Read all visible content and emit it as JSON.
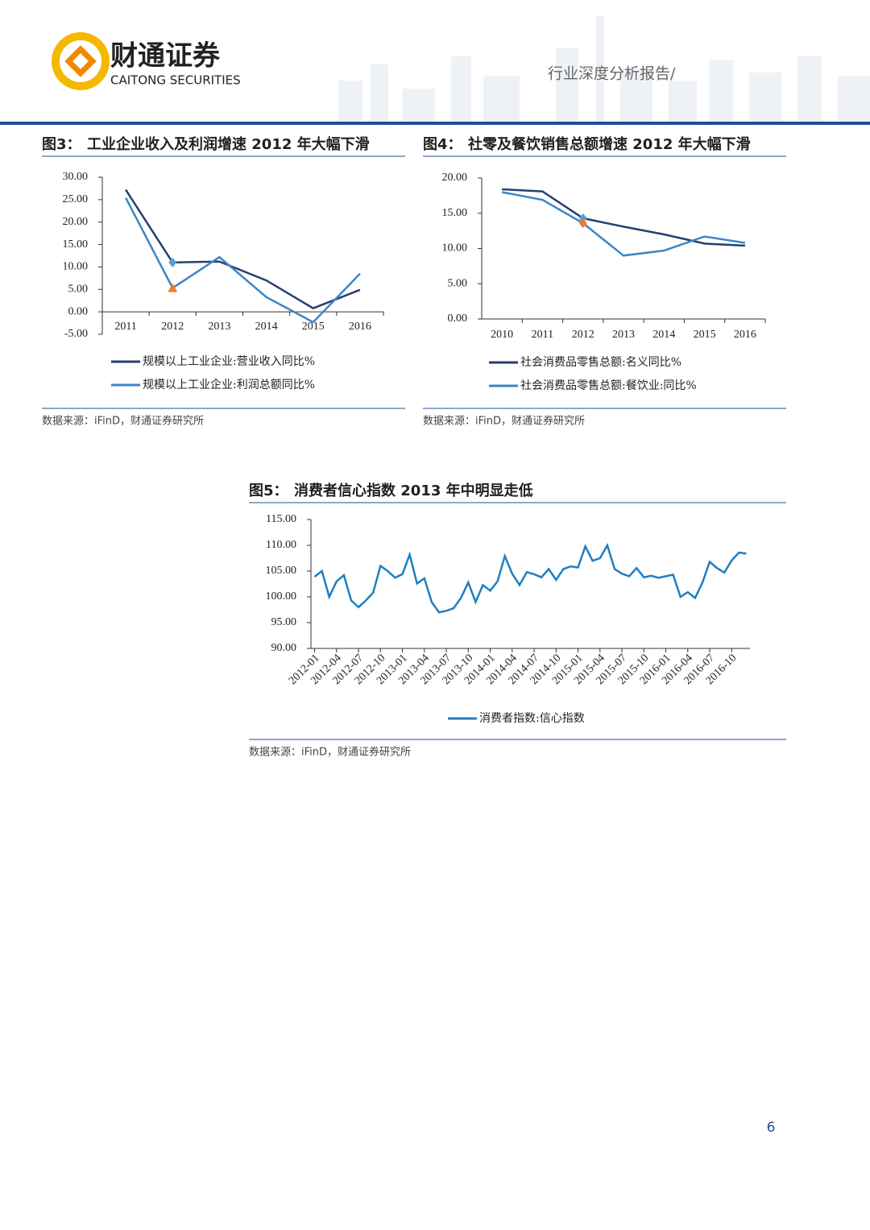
{
  "header": {
    "brand": "财通证券",
    "brand_en": "CAITONG SECURITIES",
    "report_type": "行业深度分析报告/"
  },
  "chart_data": [
    {
      "type": "line",
      "label": "图3：",
      "title": "工业企业收入及利润增速 2012 年大幅下滑",
      "categories": [
        "2011",
        "2012",
        "2013",
        "2014",
        "2015",
        "2016"
      ],
      "series": [
        {
          "name": "规模以上工业企业:营业收入同比%",
          "color": "#24406e",
          "values": [
            27.2,
            11.0,
            11.2,
            7.0,
            0.8,
            4.9
          ],
          "highlight": {
            "index": 1,
            "shape": "diamond",
            "color": "#5b9bd5"
          }
        },
        {
          "name": "规模以上工业企业:利润总额同比%",
          "color": "#3d85c6",
          "values": [
            25.4,
            5.3,
            12.2,
            3.3,
            -2.3,
            8.5
          ],
          "highlight": {
            "index": 1,
            "shape": "triangle",
            "color": "#ed7d31"
          }
        }
      ],
      "ylim": [
        -5,
        30
      ],
      "yticks": [
        {
          "value": -5,
          "label": "-5.00"
        },
        {
          "value": 0,
          "label": "0.00"
        },
        {
          "value": 5,
          "label": "5.00"
        },
        {
          "value": 10,
          "label": "10.00"
        },
        {
          "value": 15,
          "label": "15.00"
        },
        {
          "value": 20,
          "label": "20.00"
        },
        {
          "value": 25,
          "label": "25.00"
        },
        {
          "value": 30,
          "label": "30.00"
        }
      ],
      "source": "数据来源：iFinD，财通证券研究所"
    },
    {
      "type": "line",
      "label": "图4：",
      "title": "社零及餐饮销售总额增速 2012 年大幅下滑",
      "categories": [
        "2010",
        "2011",
        "2012",
        "2013",
        "2014",
        "2015",
        "2016"
      ],
      "series": [
        {
          "name": "社会消费品零售总额:名义同比%",
          "color": "#24406e",
          "values": [
            18.4,
            18.1,
            14.3,
            13.1,
            12.0,
            10.7,
            10.4
          ],
          "highlight": {
            "index": 2,
            "shape": "diamond",
            "color": "#5b9bd5"
          }
        },
        {
          "name": "社会消费品零售总额:餐饮业:同比%",
          "color": "#3d85c6",
          "values": [
            18.0,
            16.9,
            13.6,
            9.0,
            9.7,
            11.7,
            10.8
          ],
          "highlight": {
            "index": 2,
            "shape": "diamond",
            "color": "#ed7d31"
          }
        }
      ],
      "ylim": [
        0,
        20
      ],
      "yticks": [
        {
          "value": 0,
          "label": "0.00"
        },
        {
          "value": 5,
          "label": "5.00"
        },
        {
          "value": 10,
          "label": "10.00"
        },
        {
          "value": 15,
          "label": "15.00"
        },
        {
          "value": 20,
          "label": "20.00"
        }
      ],
      "source": "数据来源：iFinD，财通证券研究所"
    },
    {
      "type": "line",
      "label": "图5：",
      "title": "消费者信心指数 2013 年中明显走低",
      "categories": [
        "2012-01",
        null,
        null,
        "2012-04",
        null,
        null,
        "2012-07",
        null,
        null,
        "2012-10",
        null,
        null,
        "2013-01",
        null,
        null,
        "2013-04",
        null,
        null,
        "2013-07",
        null,
        null,
        "2013-10",
        null,
        null,
        "2014-01",
        null,
        null,
        "2014-04",
        null,
        null,
        "2014-07",
        null,
        null,
        "2014-10",
        null,
        null,
        "2015-01",
        null,
        null,
        "2015-04",
        null,
        null,
        "2015-07",
        null,
        null,
        "2015-10",
        null,
        null,
        "2016-01",
        null,
        null,
        "2016-04",
        null,
        null,
        "2016-07",
        null,
        null,
        "2016-10",
        null,
        null
      ],
      "series": [
        {
          "name": "消费者指数:信心指数",
          "color": "#1f7fc0",
          "values": [
            103.9,
            105.0,
            100.0,
            103.0,
            104.2,
            99.3,
            98.0,
            99.3,
            100.8,
            106.0,
            105.0,
            103.7,
            104.4,
            108.2,
            102.6,
            103.6,
            99.0,
            97.0,
            97.3,
            97.8,
            99.8,
            102.8,
            99.0,
            102.3,
            101.2,
            103.0,
            107.9,
            104.5,
            102.3,
            104.8,
            104.4,
            103.8,
            105.4,
            103.3,
            105.4,
            105.9,
            105.7,
            109.8,
            107.0,
            107.5,
            110.0,
            105.4,
            104.5,
            104.0,
            105.6,
            103.8,
            104.1,
            103.7,
            104.0,
            104.3,
            100.0,
            100.9,
            99.8,
            102.8,
            106.8,
            105.6,
            104.7,
            107.1,
            108.6,
            108.4
          ]
        }
      ],
      "ylim": [
        90,
        115
      ],
      "yticks": [
        {
          "value": 90,
          "label": "90.00"
        },
        {
          "value": 95,
          "label": "95.00"
        },
        {
          "value": 100,
          "label": "100.00"
        },
        {
          "value": 105,
          "label": "105.00"
        },
        {
          "value": 110,
          "label": "110.00"
        },
        {
          "value": 115,
          "label": "115.00"
        }
      ],
      "source": "数据来源：iFinD，财通证券研究所"
    }
  ],
  "page_number": "6"
}
